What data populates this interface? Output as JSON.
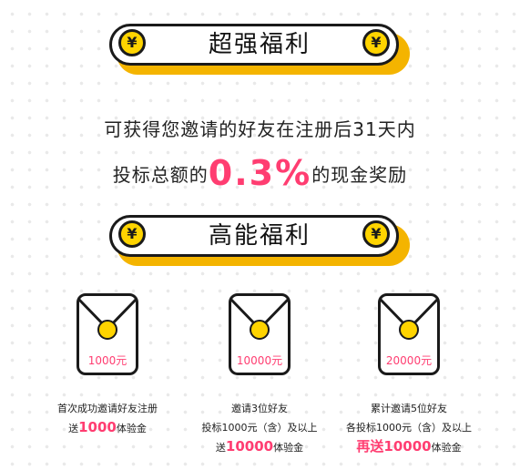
{
  "banner1": {
    "title": "超强福利",
    "coin_symbol": "¥"
  },
  "desc": {
    "line1": "可获得您邀请的好友在注册后31天内",
    "line2_pre": "投标总额的",
    "line2_big": "0.3%",
    "line2_post": "的现金奖励"
  },
  "banner2": {
    "title": "高能福利",
    "coin_symbol": "¥"
  },
  "rewards": [
    {
      "amount": "1000元",
      "line1": "首次成功邀请好友注册",
      "line2_pre": "送",
      "line2_hl": "1000",
      "line2_post": "体验金",
      "line3_pre": "",
      "line3_hl": "",
      "line3_post": ""
    },
    {
      "amount": "10000元",
      "line1": "邀请3位好友",
      "line2_pre": "投标1000元（含）及以上",
      "line2_hl": "",
      "line2_post": "",
      "line3_pre": "送",
      "line3_hl": "10000",
      "line3_post": "体验金"
    },
    {
      "amount": "20000元",
      "line1": "累计邀请5位好友",
      "line2_pre": "各投标1000元（含）及以上",
      "line2_hl": "",
      "line2_post": "",
      "line3_pre": "",
      "line3_hl": "再送10000",
      "line3_post": "体验金"
    }
  ],
  "colors": {
    "accent": "#ff3d71",
    "gold": "#f4b400",
    "coin": "#ffd400",
    "ink": "#1a1a1a"
  }
}
